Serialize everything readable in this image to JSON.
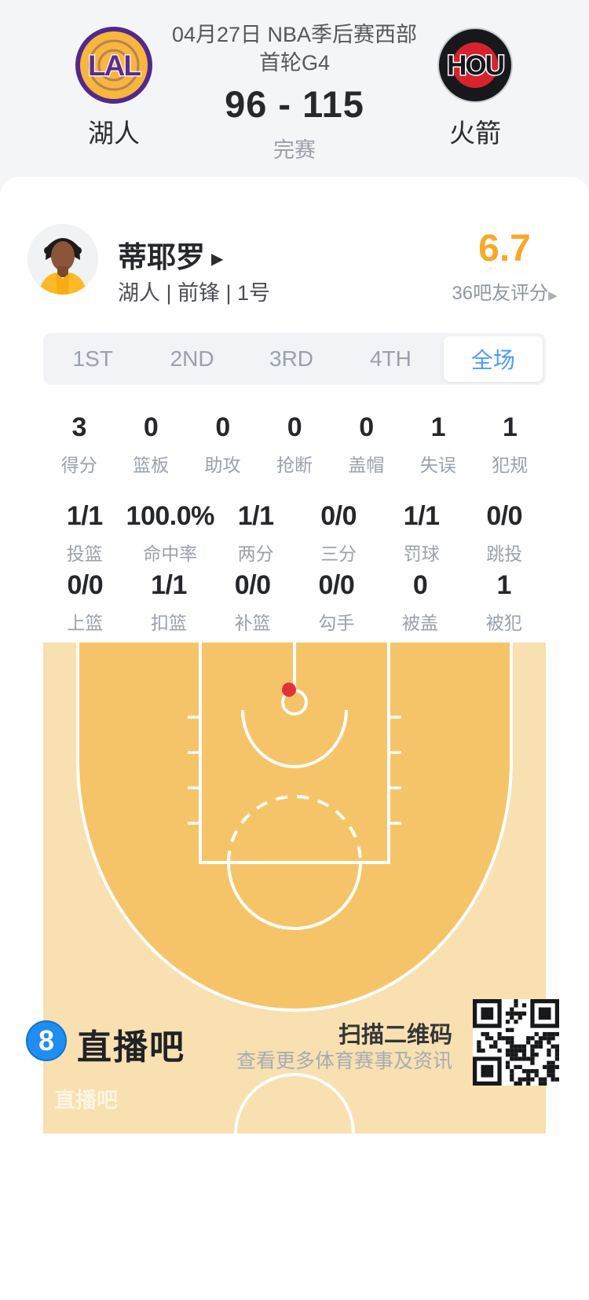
{
  "header": {
    "title_line1": "04月27日 NBA季后赛西部",
    "title_line2": "首轮G4",
    "score": "96 - 115",
    "status": "完赛",
    "home": {
      "abbr": "LAL",
      "name": "湖人"
    },
    "away": {
      "abbr": "HOU",
      "name": "火箭"
    }
  },
  "player": {
    "name": "蒂耶罗",
    "info": "湖人 | 前锋 | 1号",
    "rating": "6.7",
    "rating_label": "36吧友评分"
  },
  "tabs": [
    {
      "label": "1ST",
      "active": false
    },
    {
      "label": "2ND",
      "active": false
    },
    {
      "label": "3RD",
      "active": false
    },
    {
      "label": "4TH",
      "active": false
    },
    {
      "label": "全场",
      "active": true
    }
  ],
  "stats": {
    "row1": [
      {
        "value": "3",
        "label": "得分"
      },
      {
        "value": "0",
        "label": "篮板"
      },
      {
        "value": "0",
        "label": "助攻"
      },
      {
        "value": "0",
        "label": "抢断"
      },
      {
        "value": "0",
        "label": "盖帽"
      },
      {
        "value": "1",
        "label": "失误"
      },
      {
        "value": "1",
        "label": "犯规"
      }
    ],
    "row2": [
      {
        "value": "1/1",
        "label": "投篮"
      },
      {
        "value": "100.0%",
        "label": "命中率"
      },
      {
        "value": "1/1",
        "label": "两分"
      },
      {
        "value": "0/0",
        "label": "三分"
      },
      {
        "value": "1/1",
        "label": "罚球"
      },
      {
        "value": "0/0",
        "label": "跳投"
      }
    ],
    "row3": [
      {
        "value": "0/0",
        "label": "上篮"
      },
      {
        "value": "1/1",
        "label": "扣篮"
      },
      {
        "value": "0/0",
        "label": "补篮"
      },
      {
        "value": "0/0",
        "label": "勾手"
      },
      {
        "value": "0",
        "label": "被盖"
      },
      {
        "value": "1",
        "label": "被犯"
      }
    ]
  },
  "court": {
    "watermark": "直播吧",
    "shot": {
      "result": "made",
      "color": "#e13238"
    }
  },
  "footer": {
    "logo_glyph": "8",
    "brand": "直播吧",
    "qr_title": "扫描二维码",
    "qr_subtitle": "查看更多体育赛事及资讯"
  },
  "colors": {
    "page_bg": "#f4f5f7",
    "accent_blue": "#4a9cf5",
    "rating_orange": "#f9a826",
    "court_inner": "#f6c468",
    "court_outer": "#f8e0b0",
    "shot_red": "#e13238",
    "brand_blue": "#1f8ef0"
  }
}
